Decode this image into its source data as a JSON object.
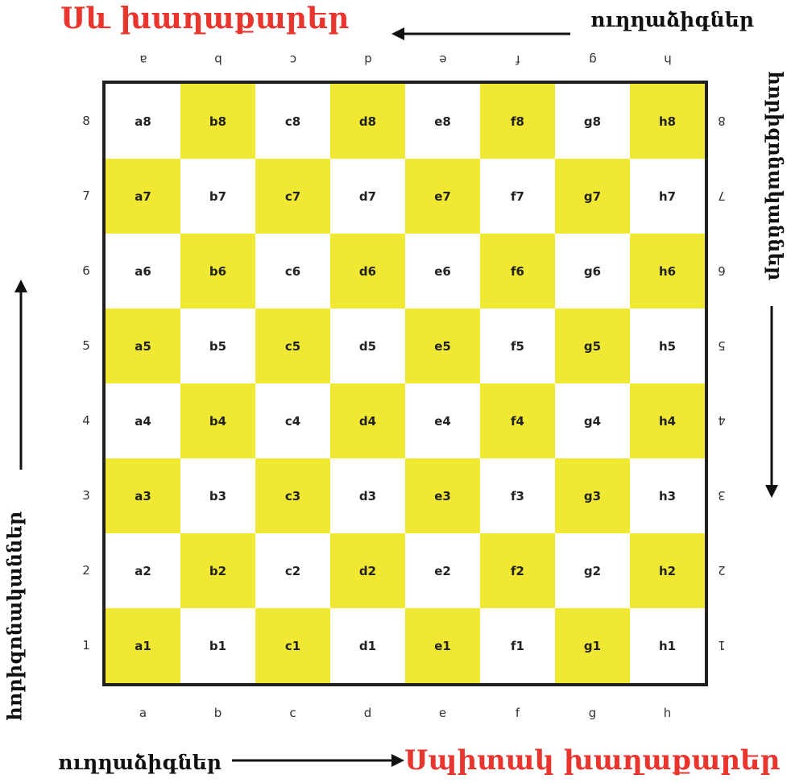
{
  "labels": {
    "black_pieces": "Սև խաղաքարեր",
    "white_pieces": "Սպիտակ խաղաքարեր",
    "verticals_top": "ուղղաձիգներ",
    "verticals_bottom": "ուղղաձիգներ",
    "horizontals_left": "հորիզոնականներ",
    "horizontals_right": "հորիզոնականներ"
  },
  "files": [
    "a",
    "b",
    "c",
    "d",
    "e",
    "f",
    "g",
    "h"
  ],
  "ranks": [
    "8",
    "7",
    "6",
    "5",
    "4",
    "3",
    "2",
    "1"
  ],
  "colors": {
    "dark_square": "#f0e833",
    "light_square": "#ffffff",
    "border": "#231f20",
    "title": "#e8352e"
  }
}
